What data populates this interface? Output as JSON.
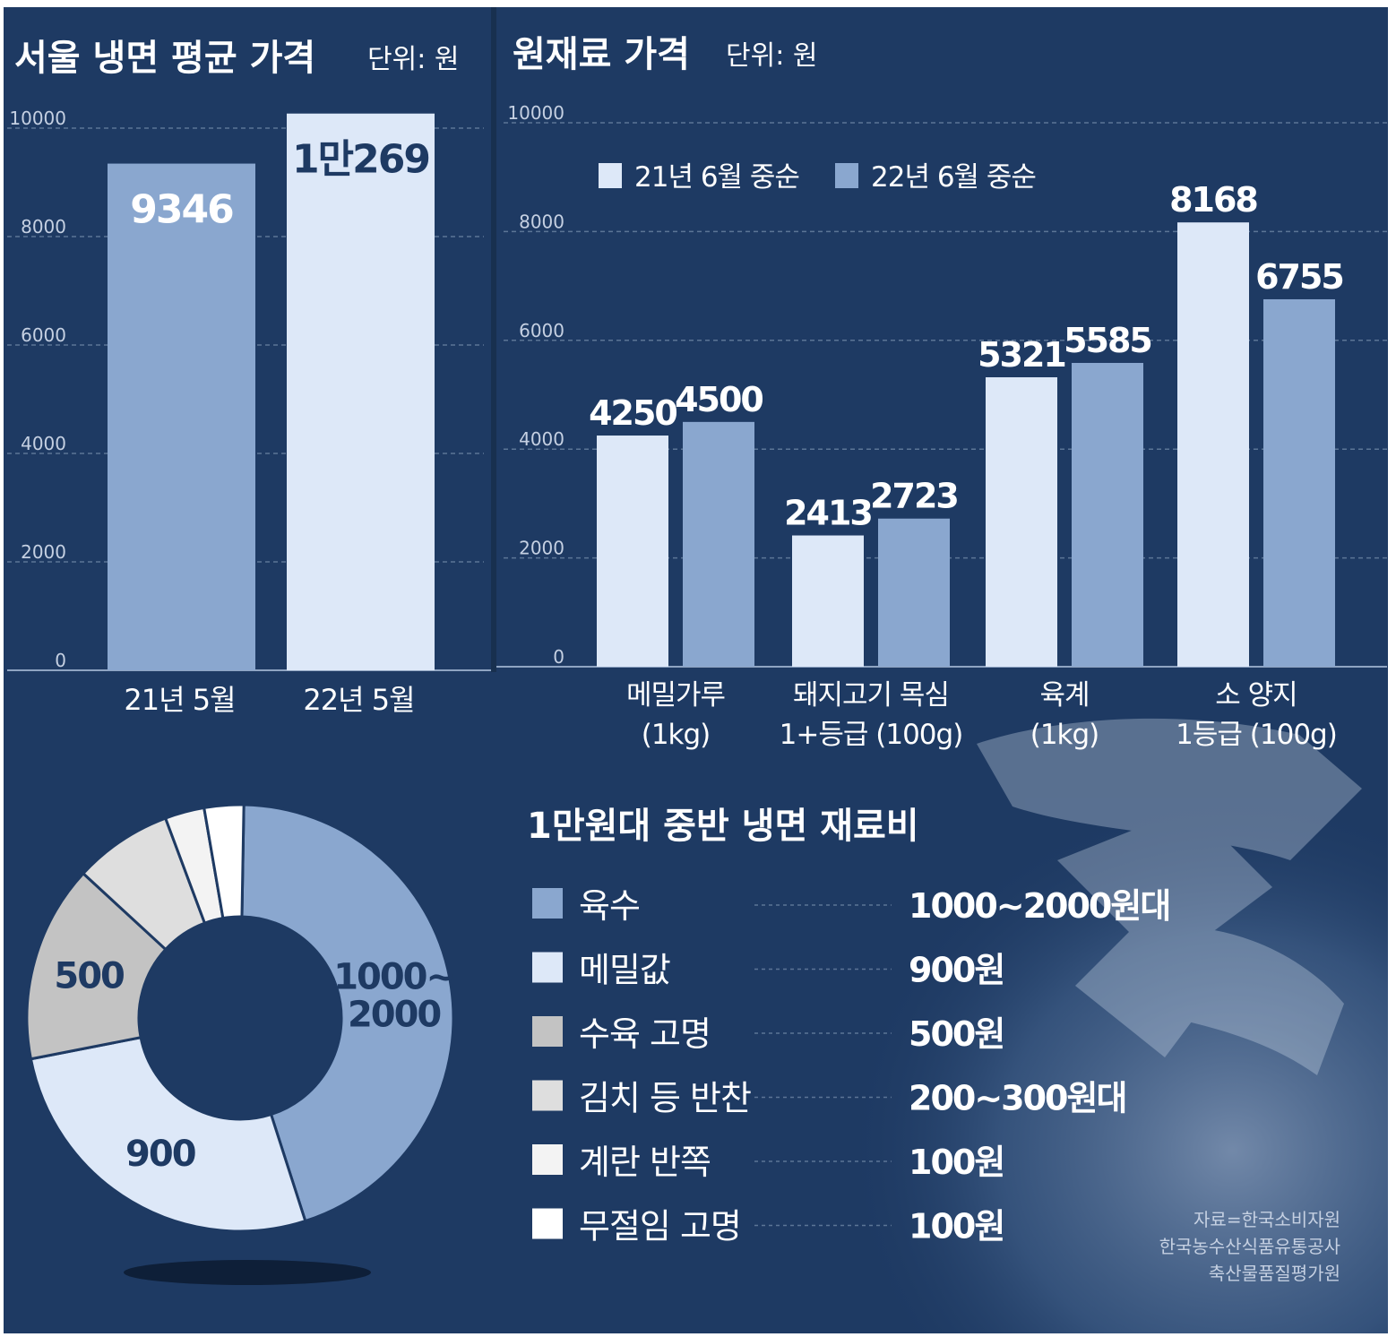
{
  "colors": {
    "background": "#1e3a63",
    "panel_divider": "#18304f",
    "light_bar": "#dde8f8",
    "mid_bar": "#8aa7cf",
    "gray": "#c3c3c3",
    "light_gray": "#dedede",
    "near_white": "#f3f3f3",
    "white": "#ffffff",
    "text_light": "#ffffff",
    "text_dark": "#1e3a63",
    "tick_text": "#c5d0e2",
    "grid": "#5c7596"
  },
  "chart_data": [
    {
      "type": "bar",
      "title": "서울 냉면 평균 가격",
      "unit": "단위: 원",
      "categories": [
        "21년 5월",
        "22년 5월"
      ],
      "values": [
        9346,
        10269
      ],
      "value_labels": [
        "9346",
        "1만269"
      ],
      "ylim": [
        0,
        10000
      ],
      "yticks": [
        "0",
        "2000",
        "4000",
        "6000",
        "8000",
        "10000"
      ],
      "grid": true
    },
    {
      "type": "bar",
      "title": "원재료 가격",
      "unit": "단위: 원",
      "categories": [
        [
          "메밀가루",
          "(1kg)"
        ],
        [
          "돼지고기 목심",
          "1+등급 (100g)"
        ],
        [
          "육계",
          "(1kg)"
        ],
        [
          "소 양지",
          "1등급 (100g)"
        ]
      ],
      "series": [
        {
          "name": "21년 6월 중순",
          "values": [
            4250,
            2413,
            5321,
            8168
          ]
        },
        {
          "name": "22년 6월 중순",
          "values": [
            4500,
            2723,
            5585,
            6755
          ]
        }
      ],
      "ylim": [
        0,
        10000
      ],
      "yticks": [
        "0",
        "2000",
        "4000",
        "6000",
        "8000",
        "10000"
      ],
      "legend": "top",
      "grid": true
    },
    {
      "type": "pie",
      "style": "donut",
      "title": "1만원대 중반 냉면 재료비",
      "slices": [
        {
          "label": "육수",
          "value": 1500,
          "display": "1000~2000원대",
          "slice_label": [
            "1000~",
            "2000"
          ]
        },
        {
          "label": "메밀값",
          "value": 900,
          "display": "900원",
          "slice_label": [
            "900"
          ]
        },
        {
          "label": "수육 고명",
          "value": 500,
          "display": "500원",
          "slice_label": [
            "500"
          ]
        },
        {
          "label": "김치 등 반찬",
          "value": 250,
          "display": "200~300원대",
          "slice_label": []
        },
        {
          "label": "계란 반쪽",
          "value": 100,
          "display": "100원",
          "slice_label": []
        },
        {
          "label": "무절임 고명",
          "value": 100,
          "display": "100원",
          "slice_label": []
        }
      ]
    }
  ],
  "source": [
    "자료=한국소비자원",
    "한국농수산식품유통공사",
    "축산물품질평가원"
  ]
}
